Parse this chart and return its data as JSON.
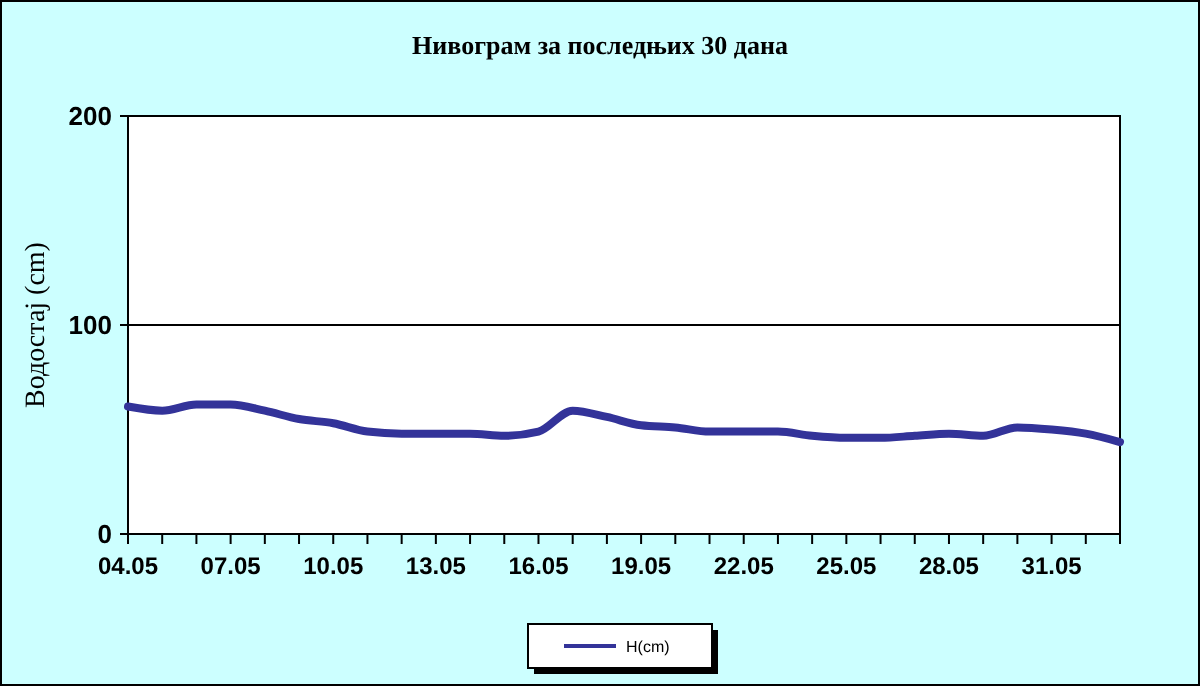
{
  "chart_data": {
    "type": "line",
    "title": "Нивограм за последњих 30 дана",
    "ylabel": "Водостај (cm)",
    "categories": [
      "04.05",
      null,
      null,
      "07.05",
      null,
      null,
      "10.05",
      null,
      null,
      "13.05",
      null,
      null,
      "16.05",
      null,
      null,
      "19.05",
      null,
      null,
      "22.05",
      null,
      null,
      "25.05",
      null,
      null,
      "28.05",
      null,
      null,
      "31.05",
      null,
      null
    ],
    "series": [
      {
        "name": "H(cm)",
        "color": "#333399",
        "values": [
          61,
          59,
          62,
          62,
          59,
          55,
          53,
          49,
          48,
          48,
          48,
          47,
          49,
          59,
          56,
          52,
          51,
          49,
          49,
          49,
          47,
          46,
          46,
          47,
          48,
          47,
          51,
          50,
          48,
          44
        ]
      }
    ],
    "ylim": [
      0,
      200
    ],
    "yticks": [
      0,
      100,
      200
    ],
    "grid": "y",
    "legend": "bottom"
  }
}
